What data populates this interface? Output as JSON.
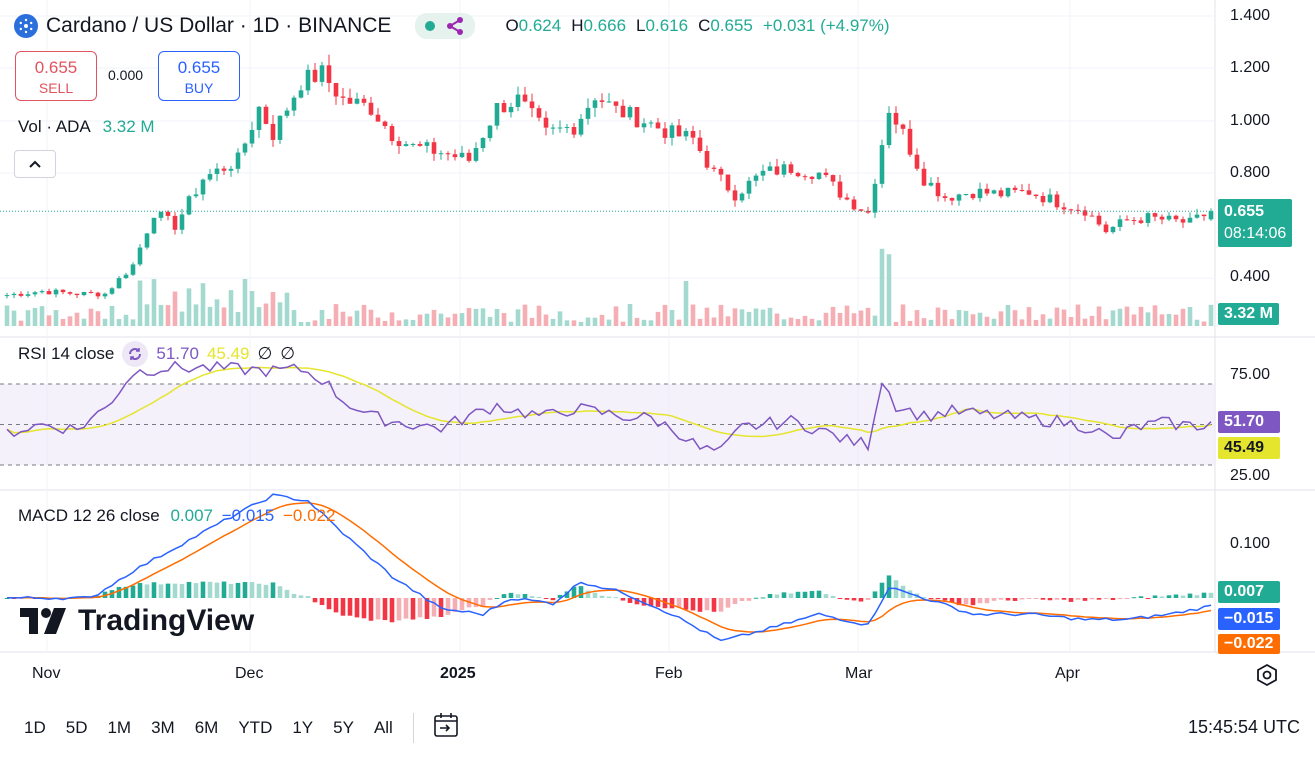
{
  "header": {
    "symbol": "Cardano / US Dollar · 1D · BINANCE",
    "ohlc": [
      {
        "k": "O",
        "v": "0.624"
      },
      {
        "k": "H",
        "v": "0.666"
      },
      {
        "k": "L",
        "v": "0.616"
      },
      {
        "k": "C",
        "v": "0.655"
      }
    ],
    "change": "+0.031 (+4.97%)"
  },
  "trade": {
    "sell_price": "0.655",
    "sell_label": "SELL",
    "spread": "0.000",
    "buy_price": "0.655",
    "buy_label": "BUY"
  },
  "volume_legend": {
    "label": "Vol · ADA",
    "value": "3.32 M"
  },
  "rsi_legend": {
    "label": "RSI 14 close",
    "v1": "51.70",
    "v2": "45.49",
    "v3": "∅",
    "v4": "∅"
  },
  "macd_legend": {
    "label": "MACD 12 26 close",
    "hist": "0.007",
    "macd": "−0.015",
    "signal": "−0.022"
  },
  "badges": {
    "price": "0.655",
    "countdown": "08:14:06",
    "volume": "3.32 M",
    "rsi": "51.70",
    "rsi_ma": "45.49",
    "macd_hist": "0.007",
    "macd": "−0.015",
    "macd_signal": "−0.022"
  },
  "price_axis": [
    "1.400",
    "1.200",
    "1.000",
    "0.800",
    "0.400"
  ],
  "rsi_axis": [
    "75.00",
    "25.00"
  ],
  "macd_axis": [
    "0.100"
  ],
  "time_axis": [
    "Nov",
    "Dec",
    "2025",
    "Feb",
    "Mar",
    "Apr"
  ],
  "ranges": [
    "1D",
    "5D",
    "1M",
    "3M",
    "6M",
    "YTD",
    "1Y",
    "5Y",
    "All"
  ],
  "clock": "15:45:54 UTC",
  "brand": "TradingView",
  "colors": {
    "up": "#22ab94",
    "down": "#f23645",
    "rsi": "#7e57c2",
    "rsi_ma": "#e5e52d",
    "macd": "#2962ff",
    "signal": "#ff6d00"
  },
  "chart_data": {
    "type": "candlestick",
    "title": "Cardano / US Dollar · 1D · BINANCE",
    "y_ticks": [
      1.4,
      1.2,
      1.0,
      0.8,
      0.4
    ],
    "x_ticks": [
      "Nov",
      "Dec",
      "2025",
      "Feb",
      "Mar",
      "Apr"
    ],
    "anchors": [
      [
        0,
        0.335
      ],
      [
        5,
        0.35
      ],
      [
        10,
        0.34
      ],
      [
        14,
        0.34
      ],
      [
        18,
        0.45
      ],
      [
        21,
        0.65
      ],
      [
        24,
        0.6
      ],
      [
        28,
        0.78
      ],
      [
        33,
        0.85
      ],
      [
        36,
        1.05
      ],
      [
        38,
        0.95
      ],
      [
        42,
        1.15
      ],
      [
        45,
        1.18
      ],
      [
        48,
        1.08
      ],
      [
        52,
        1.05
      ],
      [
        55,
        0.95
      ],
      [
        58,
        0.9
      ],
      [
        62,
        0.88
      ],
      [
        66,
        0.85
      ],
      [
        70,
        1.05
      ],
      [
        73,
        1.08
      ],
      [
        77,
        0.95
      ],
      [
        81,
        0.98
      ],
      [
        84,
        1.1
      ],
      [
        87,
        1.04
      ],
      [
        91,
        1.0
      ],
      [
        95,
        0.95
      ],
      [
        98,
        0.93
      ],
      [
        101,
        0.8
      ],
      [
        104,
        0.72
      ],
      [
        108,
        0.8
      ],
      [
        112,
        0.82
      ],
      [
        116,
        0.8
      ],
      [
        120,
        0.7
      ],
      [
        123,
        0.65
      ],
      [
        126,
        1.05
      ],
      [
        128,
        0.95
      ],
      [
        131,
        0.78
      ],
      [
        134,
        0.71
      ],
      [
        138,
        0.73
      ],
      [
        142,
        0.72
      ],
      [
        146,
        0.73
      ],
      [
        150,
        0.69
      ],
      [
        154,
        0.66
      ],
      [
        157,
        0.58
      ],
      [
        160,
        0.62
      ],
      [
        163,
        0.63
      ],
      [
        166,
        0.62
      ],
      [
        169,
        0.61
      ],
      [
        172,
        0.655
      ]
    ],
    "rsi_anchors": [
      [
        0,
        45
      ],
      [
        5,
        50
      ],
      [
        10,
        47
      ],
      [
        14,
        60
      ],
      [
        18,
        82
      ],
      [
        22,
        85
      ],
      [
        28,
        85
      ],
      [
        34,
        84
      ],
      [
        38,
        83
      ],
      [
        42,
        84
      ],
      [
        45,
        78
      ],
      [
        48,
        65
      ],
      [
        52,
        55
      ],
      [
        55,
        52
      ],
      [
        58,
        50
      ],
      [
        62,
        48
      ],
      [
        66,
        55
      ],
      [
        70,
        62
      ],
      [
        73,
        58
      ],
      [
        77,
        55
      ],
      [
        81,
        60
      ],
      [
        84,
        58
      ],
      [
        88,
        55
      ],
      [
        92,
        54
      ],
      [
        96,
        45
      ],
      [
        99,
        35
      ],
      [
        102,
        33
      ],
      [
        105,
        48
      ],
      [
        108,
        50
      ],
      [
        112,
        52
      ],
      [
        116,
        47
      ],
      [
        120,
        40
      ],
      [
        123,
        38
      ],
      [
        125,
        78
      ],
      [
        127,
        62
      ],
      [
        131,
        55
      ],
      [
        135,
        58
      ],
      [
        140,
        56
      ],
      [
        145,
        54
      ],
      [
        150,
        52
      ],
      [
        155,
        48
      ],
      [
        158,
        40
      ],
      [
        161,
        48
      ],
      [
        165,
        51
      ],
      [
        170,
        49
      ],
      [
        172,
        51.7
      ]
    ],
    "macd_anchors": [
      [
        0,
        0.0
      ],
      [
        12,
        0.0
      ],
      [
        18,
        0.05
      ],
      [
        25,
        0.1
      ],
      [
        32,
        0.15
      ],
      [
        38,
        0.19
      ],
      [
        43,
        0.18
      ],
      [
        48,
        0.12
      ],
      [
        55,
        0.04
      ],
      [
        62,
        -0.02
      ],
      [
        68,
        -0.03
      ],
      [
        72,
        0.0
      ],
      [
        78,
        -0.01
      ],
      [
        82,
        0.03
      ],
      [
        88,
        0.01
      ],
      [
        95,
        -0.03
      ],
      [
        102,
        -0.08
      ],
      [
        108,
        -0.06
      ],
      [
        116,
        -0.03
      ],
      [
        123,
        -0.05
      ],
      [
        126,
        0.02
      ],
      [
        131,
        0.0
      ],
      [
        138,
        -0.03
      ],
      [
        146,
        -0.03
      ],
      [
        154,
        -0.04
      ],
      [
        160,
        -0.04
      ],
      [
        166,
        -0.03
      ],
      [
        172,
        -0.015
      ]
    ],
    "last": {
      "open": 0.624,
      "high": 0.666,
      "low": 0.616,
      "close": 0.655
    },
    "volume_last": 3.32
  }
}
